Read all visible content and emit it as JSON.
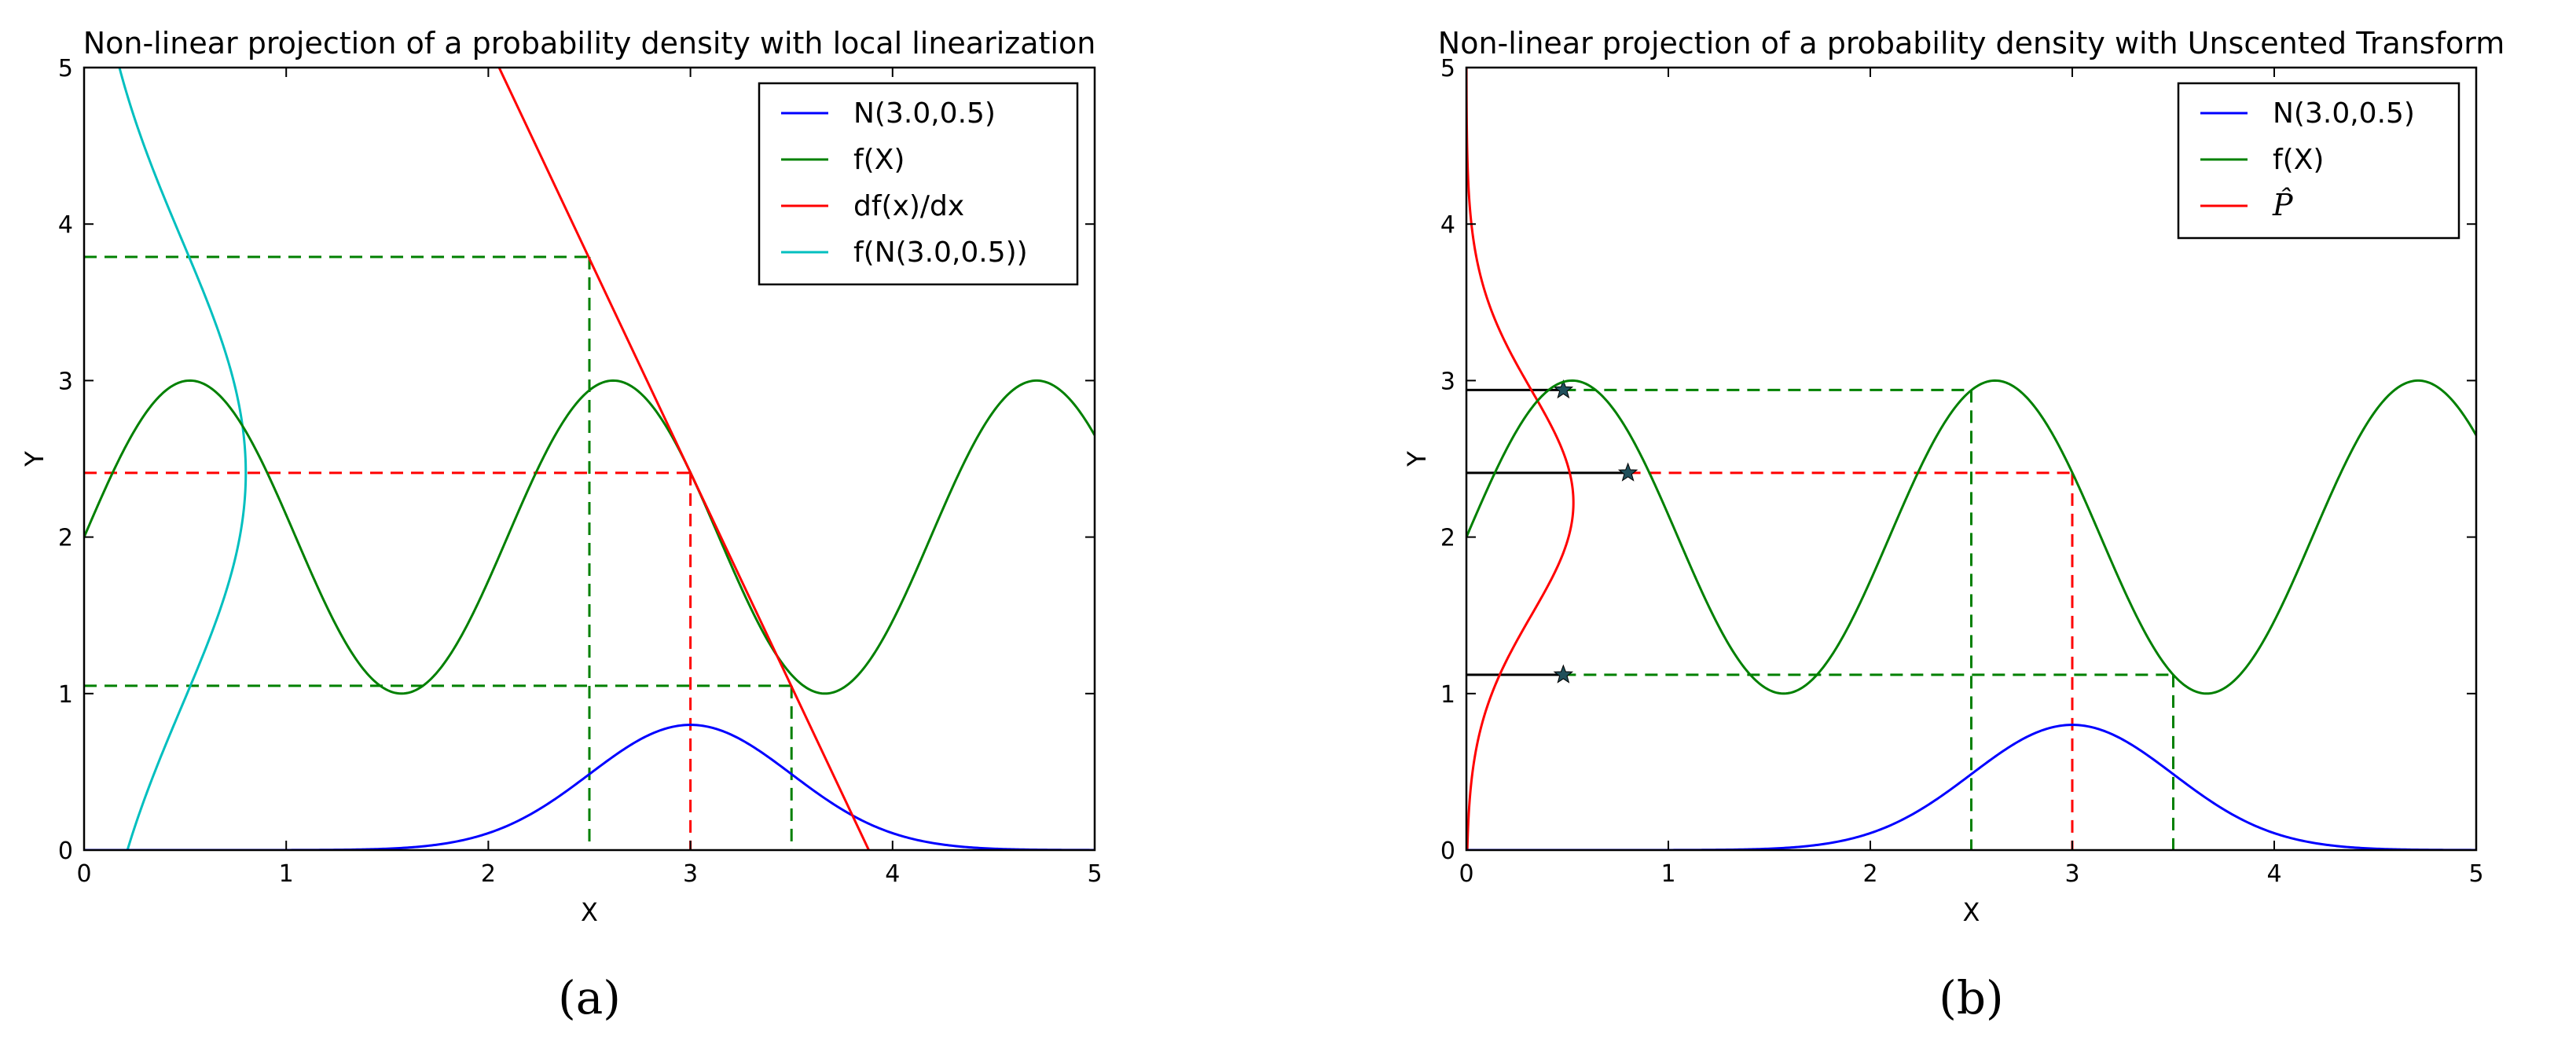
{
  "chart_data": [
    {
      "id": "a",
      "type": "line",
      "title": "Non-linear projection of a probability density with local linearization",
      "xlabel": "X",
      "ylabel": "Y",
      "xlim": [
        0,
        5
      ],
      "ylim": [
        0,
        5
      ],
      "xticks": [
        "0",
        "1",
        "2",
        "3",
        "4",
        "5"
      ],
      "yticks": [
        "0",
        "1",
        "2",
        "3",
        "4",
        "5"
      ],
      "legend_position": "top-right",
      "caption": "(a)",
      "series": [
        {
          "name": "N(3.0,0.5)",
          "color": "#0000ff",
          "function": "0.8*exp(-(x-3)^2/(2*0.5^2))",
          "x_range": [
            0,
            5
          ]
        },
        {
          "name": "f(X)",
          "color": "#008000",
          "function": "2+sin(3*x)",
          "x_range": [
            0,
            5
          ]
        },
        {
          "name": "df(x)/dx",
          "color": "#ff0000",
          "function": "tangent of f at x=3",
          "x_range": [
            2.05,
            3.87
          ]
        },
        {
          "name": "f(N(3.0,0.5))",
          "color": "#00bfbf",
          "function": "projected density of f(X)",
          "x_range": [
            0,
            0.8
          ]
        }
      ],
      "guides": [
        {
          "kind": "dashed",
          "color": "#ff0000",
          "x": 3.0,
          "y": 2.41
        },
        {
          "kind": "dashed",
          "color": "#008000",
          "x": 2.5,
          "y": 3.79
        },
        {
          "kind": "dashed",
          "color": "#008000",
          "x": 3.5,
          "y": 1.05
        }
      ]
    },
    {
      "id": "b",
      "type": "line",
      "title": "Non-linear projection of a probability density with Unscented Transform",
      "xlabel": "X",
      "ylabel": "Y",
      "xlim": [
        0,
        5
      ],
      "ylim": [
        0,
        5
      ],
      "xticks": [
        "0",
        "1",
        "2",
        "3",
        "4",
        "5"
      ],
      "yticks": [
        "0",
        "1",
        "2",
        "3",
        "4",
        "5"
      ],
      "legend_position": "top-right",
      "caption": "(b)",
      "series": [
        {
          "name": "N(3.0,0.5)",
          "color": "#0000ff",
          "function": "0.8*exp(-(x-3)^2/(2*0.5^2))",
          "x_range": [
            0,
            5
          ]
        },
        {
          "name": "f(X)",
          "color": "#008000",
          "function": "2+sin(3*x)",
          "x_range": [
            0,
            5
          ]
        },
        {
          "name": "P̂",
          "color": "#ff0000",
          "function": "density: mean 2.22, sd 0.72",
          "x_range": [
            0,
            0.53
          ]
        }
      ],
      "sigma_points": [
        {
          "x": 2.5,
          "y": 2.94,
          "weight": 0.48
        },
        {
          "x": 3.0,
          "y": 2.41,
          "weight": 0.8
        },
        {
          "x": 3.5,
          "y": 1.12,
          "weight": 0.48
        }
      ]
    }
  ]
}
